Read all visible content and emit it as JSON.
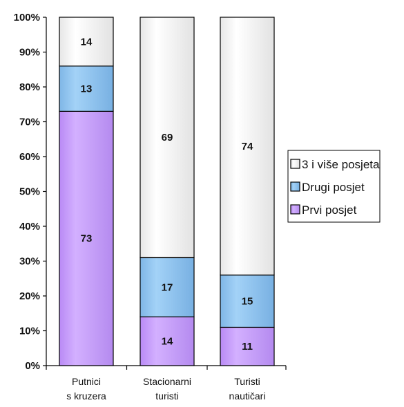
{
  "chart_data": {
    "type": "bar",
    "stacked": true,
    "normalized": true,
    "categories": [
      [
        "Putnici",
        "s kruzera"
      ],
      [
        "Stacionarni",
        "turisti"
      ],
      [
        "Turisti",
        "nautičari"
      ]
    ],
    "series": [
      {
        "name": "Prvi posjet",
        "values": [
          73,
          14,
          11
        ],
        "color": "#c9a2ff"
      },
      {
        "name": "Drugi posjet",
        "values": [
          13,
          17,
          15
        ],
        "color": "#8ec4ef"
      },
      {
        "name": "3 i više posjeta",
        "values": [
          14,
          69,
          74
        ],
        "color": "#f7f7f7"
      }
    ],
    "legend_order": [
      "3 i više posjeta",
      "Drugi posjet",
      "Prvi posjet"
    ],
    "y_ticks": [
      "0%",
      "10%",
      "20%",
      "30%",
      "40%",
      "50%",
      "60%",
      "70%",
      "80%",
      "90%",
      "100%"
    ],
    "ylim": [
      0,
      100
    ],
    "legend_position": "right",
    "grid": false
  }
}
